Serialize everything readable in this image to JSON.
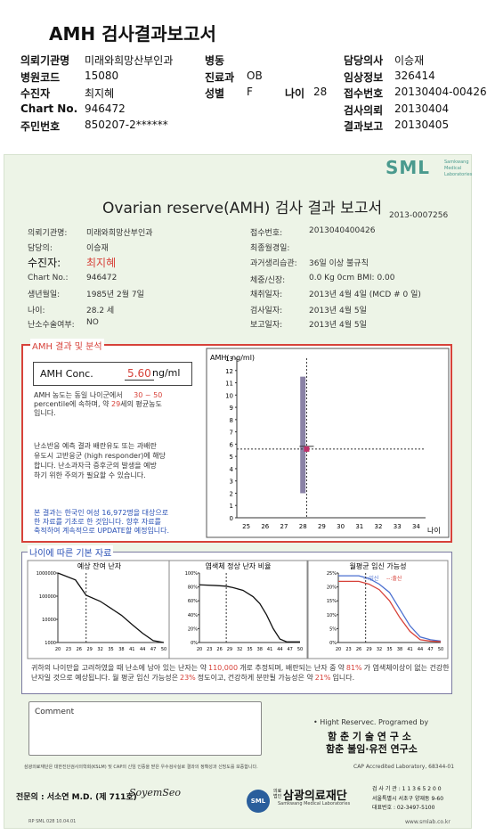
{
  "header": {
    "title": "AMH 검사결과보고서",
    "rows": [
      {
        "label": "의뢰기관명",
        "value": "미래와희망산부인과",
        "label2": "병동",
        "value2": "",
        "label3": "담당의사",
        "value3": "이승재"
      },
      {
        "label": "병원코드",
        "value": "15080",
        "label2": "진료과",
        "value2": "OB",
        "label3": "임상정보",
        "value3": "326414"
      },
      {
        "label": "수진자",
        "value": "최지혜",
        "label2": "성별",
        "value2": "F",
        "extra_label": "나이",
        "extra_value": "28",
        "label3": "접수번호",
        "value3": "20130404-00426"
      },
      {
        "label": "Chart No.",
        "value": "946472",
        "label2": "",
        "value2": "",
        "label3": "검사의뢰",
        "value3": "20130404"
      },
      {
        "label": "주민번호",
        "value": "850207-2******",
        "label2": "",
        "value2": "",
        "label3": "결과보고",
        "value3": "20130405"
      }
    ]
  },
  "report": {
    "logo": "SML",
    "logo_sub": "Samkwang Medical Laboratories",
    "title": "Ovarian reserve(AMH) 검사 결과 보고서",
    "doc_no": "2013-0007256",
    "left_fields": [
      {
        "label": "의뢰기관명:",
        "value": "미래와희망산부인과"
      },
      {
        "label": "담당의:",
        "value": "이승재"
      },
      {
        "label": "수진자:",
        "value": "최지혜"
      },
      {
        "label": "Chart No.:",
        "value": "946472"
      },
      {
        "label": "생년월일:",
        "value": "1985년 2월 7일"
      },
      {
        "label": "나이:",
        "value": "28.2 세"
      },
      {
        "label": "난소수술여부:",
        "value": "NO"
      }
    ],
    "right_fields": [
      {
        "label": "접수번호:",
        "value": "2013040400426"
      },
      {
        "label": "최종월경일:",
        "value": ""
      },
      {
        "label": "과거생리습관:",
        "value": "36일 이상 불규칙"
      },
      {
        "label": "체중/신장:",
        "value": "0.0 Kg       0cm   BMI:   0.00"
      },
      {
        "label": "채취일자:",
        "value": "2013년 4월 4일      (MCD # 0 일)"
      },
      {
        "label": "검사일자:",
        "value": "2013년 4월 5일"
      },
      {
        "label": "보고일자:",
        "value": "2013년 4월 5일"
      }
    ],
    "analysis": {
      "heading": "AMH 결과 및 분석",
      "conc_label": "AMH Conc.",
      "conc_value": "5.60",
      "conc_unit": "ng/ml",
      "p1a": "AMH 농도는 동일 나이군에서",
      "p1b": "30 ~ 50",
      "p1c": "percentile에 속하며, 약",
      "p1d": "29",
      "p1e": "세의 평균농도",
      "p1f": "입니다.",
      "p2": [
        "난소반응 예측 결과 배란유도 또는 과배란",
        "유도시 고반응군 (high responder)에 해당",
        "합니다. 난소과자극 증후군의 발생을 예방",
        "하기 위한 주의가 필요할 수 있습니다."
      ],
      "p3": [
        "본 결과는 한국인 여성 16,972명을 대상으로",
        "한 자료를 기초로 한 것입니다. 향후 자료를",
        "축적하여 계속적으로 UPDATE할 예정입니다."
      ]
    },
    "basic": {
      "heading": "나이에 따른 기본 자료",
      "chart1_title": "예상 잔여 난자",
      "chart2_title": "염색체 정상 난자 비율",
      "chart3_title": "월평균 임신 가능성",
      "legend3a": "임신",
      "legend3b": "출산",
      "summary": [
        "귀하의 나이만을 고려하였을 때 난소에 남아 있는 난자는 약",
        "110,000",
        "개로 추정되며, 배란되는 난자 중",
        "약",
        "81%",
        "가 염색체이상이 없는 건강한 난자일 것으로 예상됩니다. 월 평균 임신 가능성은",
        "23%",
        "정도이고,",
        "건강하게 분만될 가능성은 약",
        "21%",
        "입니다."
      ]
    },
    "comment_label": "Comment",
    "programmed_by": "• Hight Reservec. Programed by",
    "org1": "함 춘 기 술 연 구 소",
    "org2": "함춘 불임·유전 연구소",
    "cert_text": "삼광의료재단은 대한진단검사의학회(KSLM) 및 CAP의 신임 인증을 받은 우수검사실로 결과의 정확성과 신빙도를 보증합니다.",
    "cap": "CAP  Accredited  Laboratory,  68344-01",
    "specialist": "전문의 : 서소연 M.D.  (제 711호)",
    "signature": "SoyemSeo",
    "foundation_small": "의료법인",
    "foundation": "삼광의료재단",
    "foundation_en": "Samkwang Medical Laboratories",
    "addr1": "검 사 기 관 : 1 1 3 6 5 2 0 0",
    "addr2": "서울특별시 서초구 양재동 9-60",
    "addr3": "대표번호 : 02-3497-5100",
    "footer_left": "RP  SML  028  10.04.01",
    "footer_right": "www.smlab.co.kr"
  },
  "chart_data": [
    {
      "type": "scatter",
      "title": "AMH( ng/ml)",
      "xlabel": "나이",
      "x_ticks": [
        25,
        26,
        27,
        28,
        29,
        30,
        31,
        32,
        33,
        34
      ],
      "y_ticks": [
        0,
        1,
        2,
        3,
        4,
        5,
        6,
        7,
        8,
        9,
        10,
        11,
        12,
        13
      ],
      "xlim": [
        24.5,
        34.5
      ],
      "ylim": [
        0,
        13
      ],
      "range_bar": {
        "x": 28,
        "low": 2,
        "high": 11.5
      },
      "point": {
        "x": 28.2,
        "y": 5.6
      }
    },
    {
      "type": "line",
      "title": "예상 잔여 난자",
      "x_ticks": [
        20,
        23,
        26,
        29,
        32,
        35,
        38,
        41,
        44,
        47,
        50
      ],
      "y_ticks": [
        1000,
        10000,
        100000,
        1000000
      ],
      "y_scale": "log",
      "series": [
        {
          "x": [
            20,
            25,
            28,
            32,
            35,
            38,
            41,
            44,
            47,
            50
          ],
          "values": [
            1000000,
            500000,
            110000,
            60000,
            30000,
            15000,
            6000,
            2500,
            1200,
            1000
          ]
        }
      ]
    },
    {
      "type": "line",
      "title": "염색체 정상 난자 비율",
      "x_ticks": [
        20,
        23,
        26,
        29,
        32,
        35,
        38,
        41,
        44,
        47,
        50
      ],
      "y_ticks": [
        "0%",
        "20%",
        "40%",
        "60%",
        "80%",
        "100%"
      ],
      "series": [
        {
          "x": [
            20,
            25,
            28,
            30,
            33,
            36,
            38,
            40,
            42,
            44,
            46,
            50
          ],
          "values": [
            83,
            82,
            81,
            79,
            75,
            66,
            56,
            40,
            20,
            5,
            1,
            1
          ]
        }
      ]
    },
    {
      "type": "line",
      "title": "월평균 임신 가능성",
      "x_ticks": [
        20,
        23,
        26,
        29,
        32,
        35,
        38,
        41,
        44,
        47,
        50
      ],
      "y_ticks": [
        "0%",
        "5%",
        "10%",
        "15%",
        "20%",
        "25%"
      ],
      "series": [
        {
          "name": "임신",
          "x": [
            20,
            26,
            29,
            32,
            35,
            38,
            41,
            44,
            47,
            50
          ],
          "values": [
            24,
            24,
            23,
            21,
            18,
            12,
            6,
            2,
            1,
            0.5
          ]
        },
        {
          "name": "출산",
          "x": [
            20,
            26,
            29,
            32,
            35,
            38,
            41,
            44,
            47,
            50
          ],
          "values": [
            22,
            22,
            21,
            19,
            15,
            9,
            4,
            1,
            0.5,
            0.3
          ]
        }
      ]
    }
  ]
}
